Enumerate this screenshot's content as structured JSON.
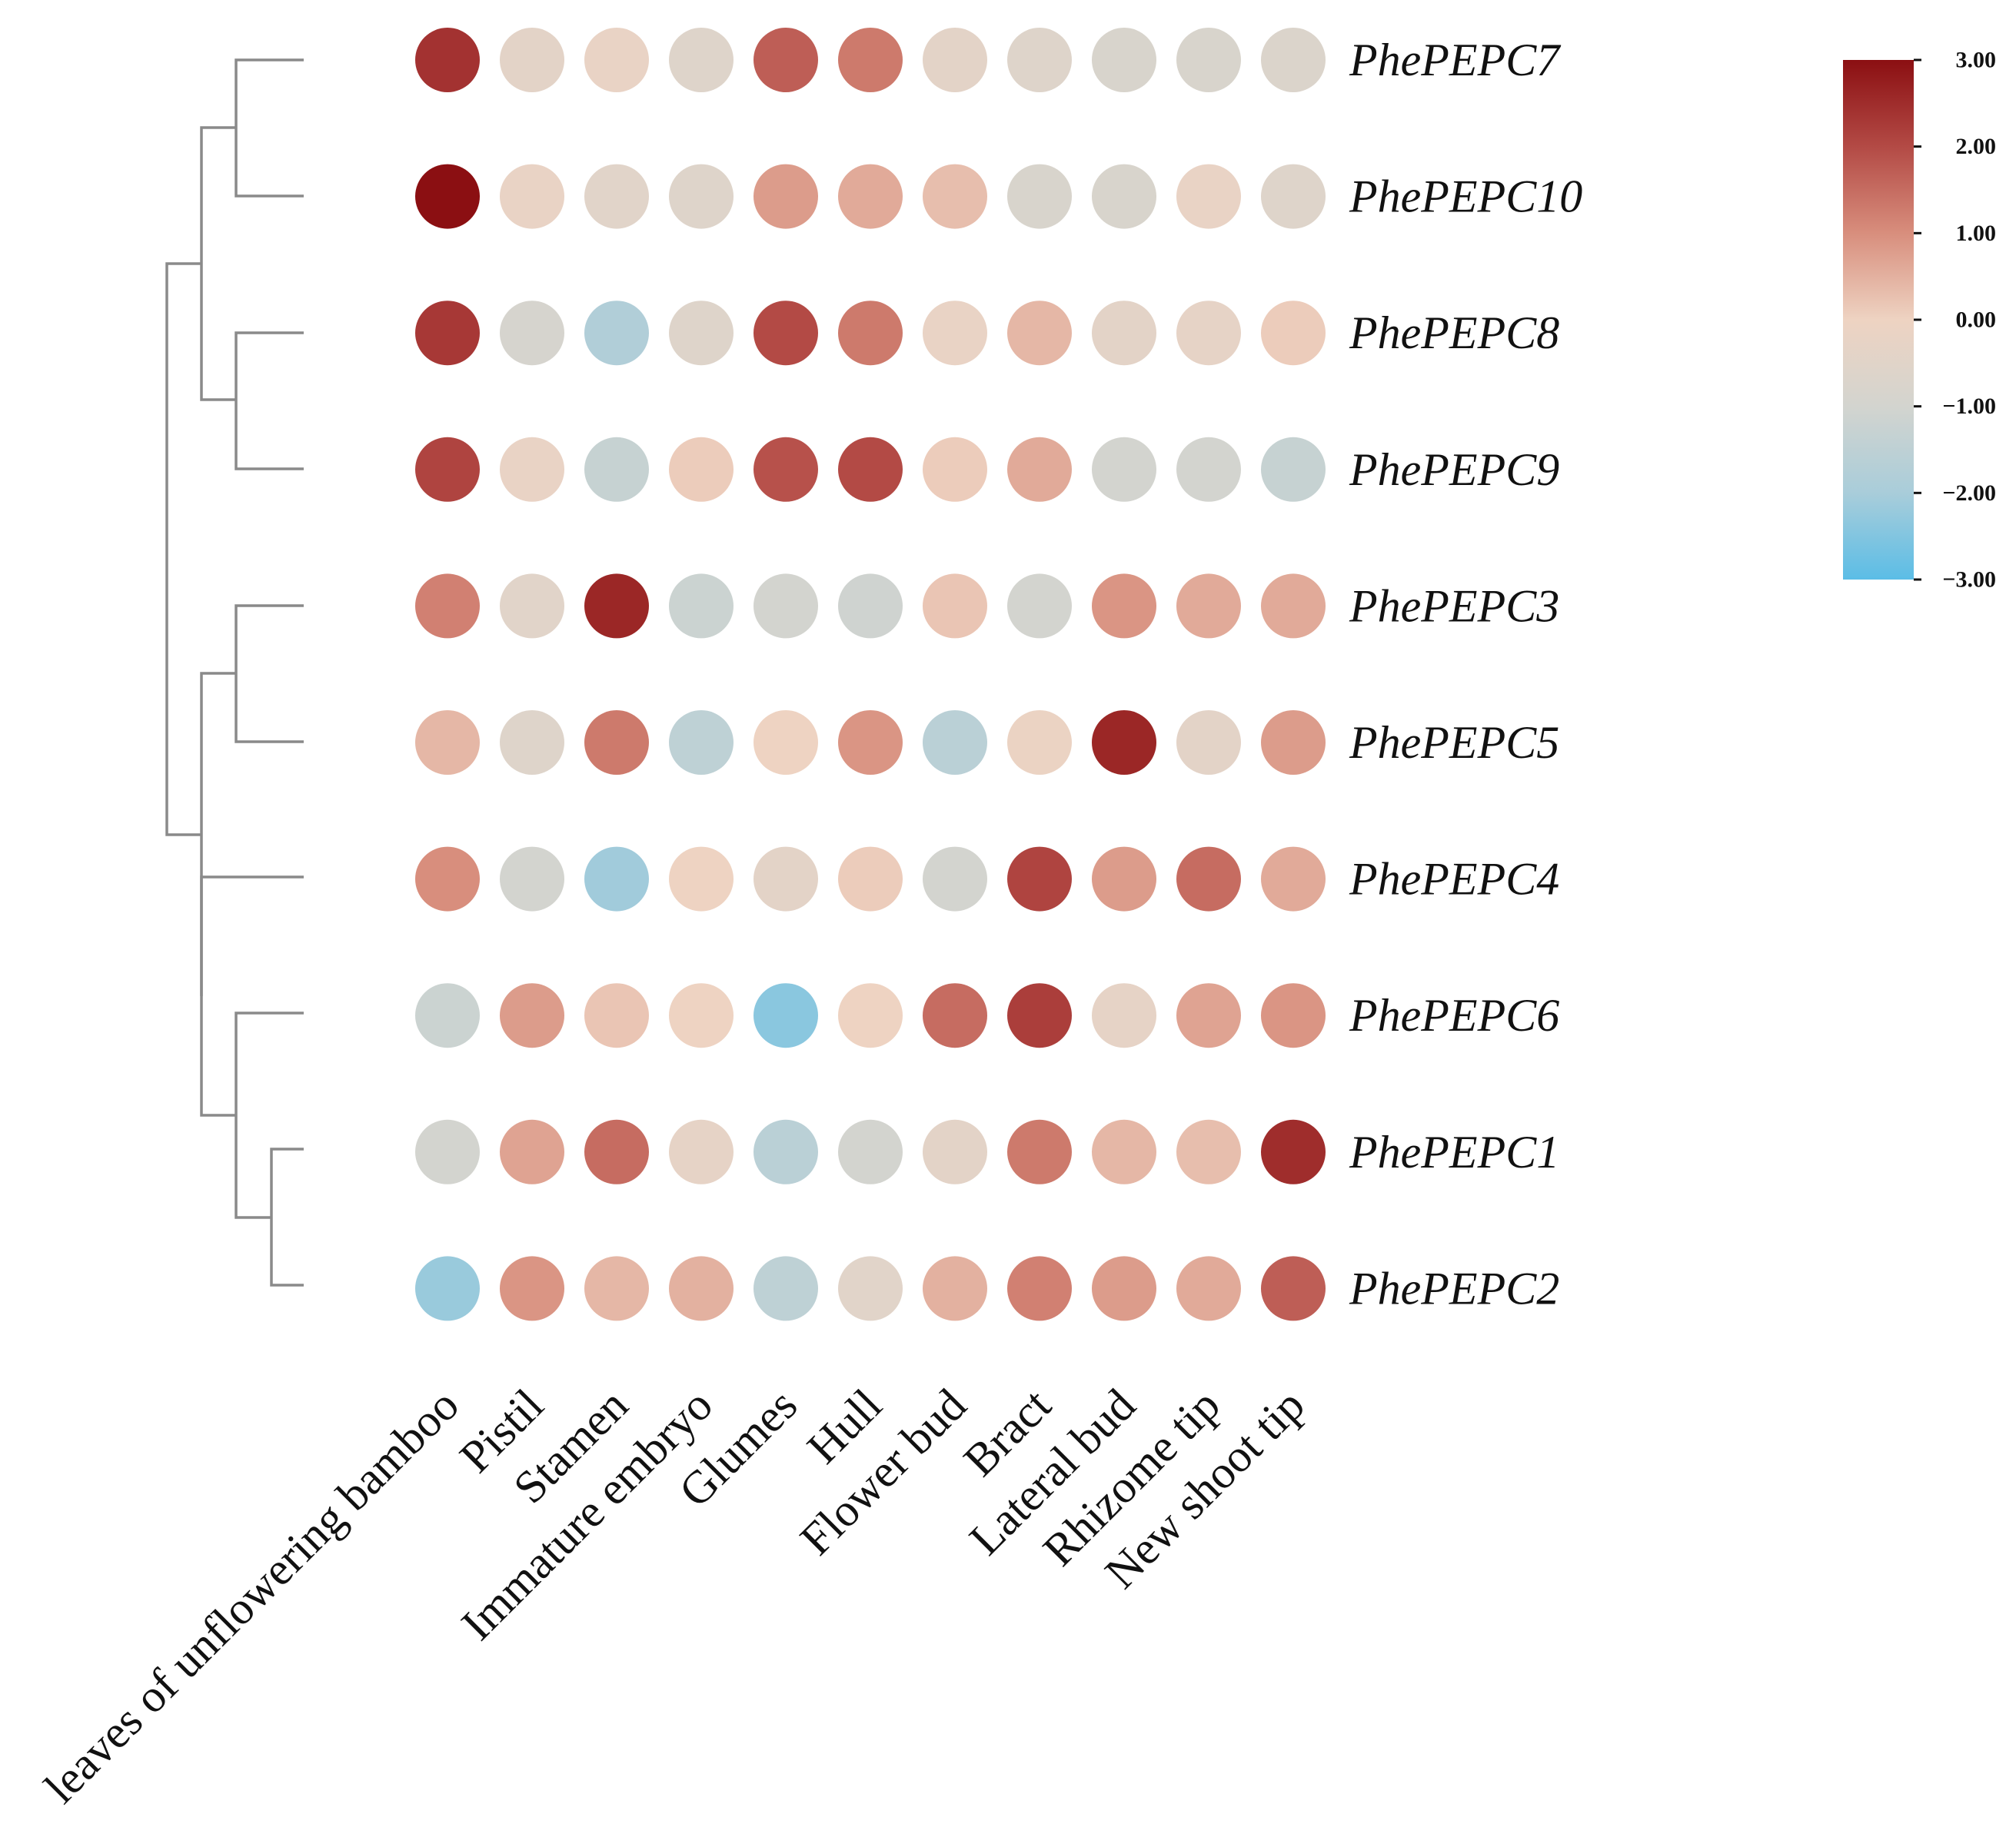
{
  "chart_data": {
    "type": "heatmap",
    "marker": "circle",
    "columns": [
      "leaves of unflowering bamboo",
      "Pistil",
      "Stamen",
      "Immature embryo",
      "Glumes",
      "Hull",
      "Flower bud",
      "Bract",
      "Lateral bud",
      "Rhizome tip",
      "New shoot tip"
    ],
    "rows": [
      "PhePEPC7",
      "PhePEPC10",
      "PhePEPC8",
      "PhePEPC9",
      "PhePEPC3",
      "PhePEPC5",
      "PhePEPC4",
      "PhePEPC6",
      "PhePEPC1",
      "PhePEPC2"
    ],
    "values": [
      [
        2.4,
        -0.4,
        -0.2,
        -0.6,
        1.7,
        1.3,
        -0.4,
        -0.6,
        -0.8,
        -0.8,
        -0.7
      ],
      [
        3.0,
        -0.2,
        -0.5,
        -0.6,
        0.8,
        0.6,
        0.3,
        -0.8,
        -0.8,
        -0.2,
        -0.6
      ],
      [
        2.3,
        -0.9,
        -1.8,
        -0.6,
        2.0,
        1.3,
        -0.2,
        0.4,
        -0.4,
        -0.3,
        0.1
      ],
      [
        2.1,
        -0.2,
        -1.3,
        0.1,
        1.9,
        2.0,
        0.1,
        0.6,
        -1.0,
        -1.0,
        -1.3
      ],
      [
        1.2,
        -0.5,
        2.6,
        -1.2,
        -1.0,
        -1.1,
        0.2,
        -1.0,
        0.9,
        0.6,
        0.6
      ],
      [
        0.4,
        -0.6,
        1.3,
        -1.5,
        0.0,
        0.9,
        -1.6,
        -0.1,
        2.6,
        -0.4,
        0.8
      ],
      [
        1.0,
        -1.0,
        -2.1,
        0.0,
        -0.4,
        0.1,
        -1.0,
        2.1,
        0.8,
        1.5,
        0.6
      ],
      [
        -1.2,
        0.8,
        0.2,
        0.0,
        -2.4,
        0.0,
        1.5,
        2.2,
        -0.3,
        0.7,
        0.9
      ],
      [
        -1.0,
        0.7,
        1.5,
        -0.3,
        -1.6,
        -1.0,
        -0.4,
        1.3,
        0.4,
        0.3,
        2.5
      ],
      [
        -2.2,
        0.9,
        0.4,
        0.5,
        -1.5,
        -0.5,
        0.5,
        1.2,
        0.8,
        0.6,
        1.7
      ]
    ],
    "colorbar": {
      "range": [
        -3,
        3
      ],
      "ticks": [
        "3.00",
        "2.00",
        "1.00",
        "0.00",
        "−1.00",
        "−2.00",
        "−3.00"
      ],
      "colors": [
        "#5bbde6",
        "#a9cdda",
        "#d3d4cf",
        "#eed3c2",
        "#d88e7d",
        "#b34a45",
        "#8b0f12"
      ]
    }
  }
}
